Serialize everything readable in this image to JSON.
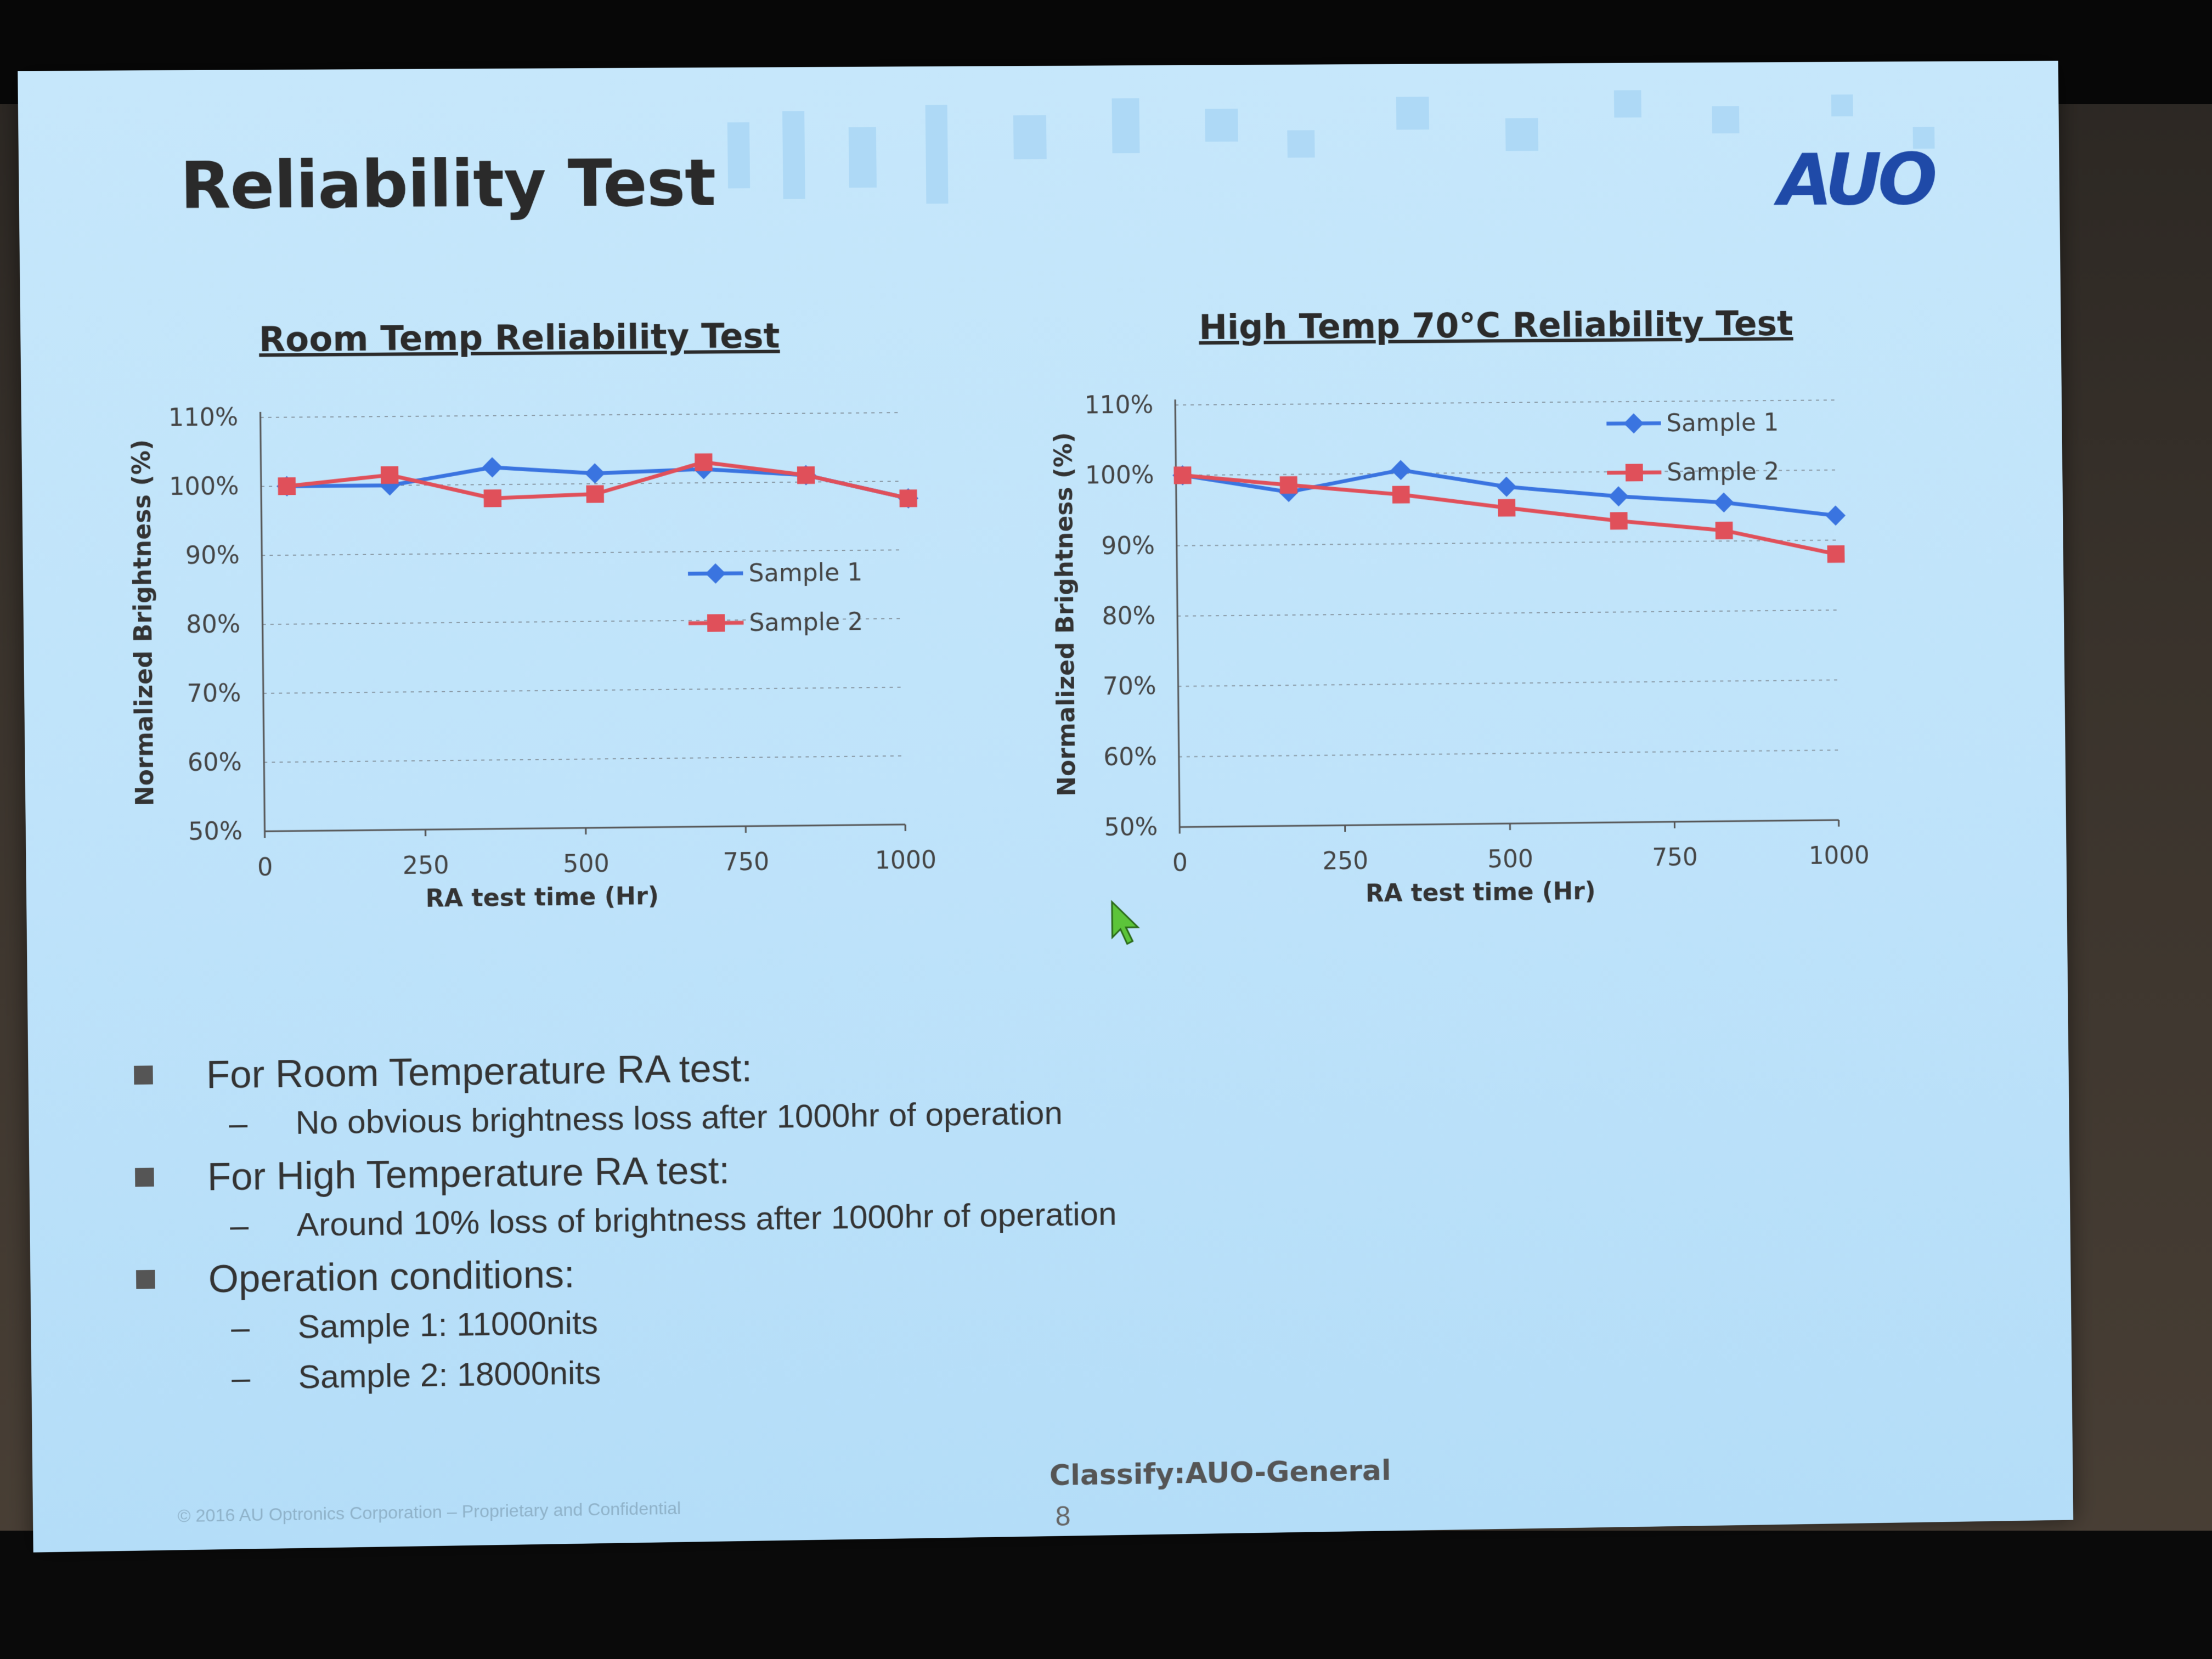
{
  "slide": {
    "title": "Reliability Test",
    "logo": "AUO",
    "classify": "Classify:AUO-General",
    "page_number": "8",
    "copyright": "© 2016 AU Optronics Corporation – Proprietary and Confidential"
  },
  "colors": {
    "sample1": "#3a74e0",
    "sample2": "#e0505a"
  },
  "chart_data": [
    {
      "type": "line",
      "title": "Room Temp Reliability Test",
      "xlabel": "RA test time (Hr)",
      "ylabel": "Normalized Brightness (%)",
      "x_ticks": [
        "0",
        "250",
        "500",
        "750",
        "1000"
      ],
      "y_ticks": [
        "50%",
        "60%",
        "70%",
        "80%",
        "90%",
        "100%",
        "110%"
      ],
      "xlim": [
        0,
        1000
      ],
      "ylim": [
        50,
        110
      ],
      "grid": true,
      "legend": "middle-right",
      "series": [
        {
          "name": "Sample 1",
          "x": [
            40,
            200,
            360,
            520,
            690,
            850,
            1010
          ],
          "values": [
            100,
            100,
            102.5,
            101.5,
            102,
            101,
            97.5
          ]
        },
        {
          "name": "Sample 2",
          "x": [
            40,
            200,
            360,
            520,
            690,
            850,
            1010
          ],
          "values": [
            100,
            101.5,
            98,
            98.5,
            103,
            101,
            97.5
          ]
        }
      ]
    },
    {
      "type": "line",
      "title": "High Temp 70°C Reliability Test",
      "xlabel": "RA test time (Hr)",
      "ylabel": "Normalized Brightness (%)",
      "x_ticks": [
        "0",
        "250",
        "500",
        "750",
        "1000"
      ],
      "y_ticks": [
        "50%",
        "60%",
        "70%",
        "80%",
        "90%",
        "100%",
        "110%"
      ],
      "xlim": [
        0,
        1000
      ],
      "ylim": [
        50,
        110
      ],
      "grid": true,
      "legend": "top-right",
      "series": [
        {
          "name": "Sample 1",
          "x": [
            10,
            170,
            340,
            500,
            670,
            830,
            1000
          ],
          "values": [
            100,
            97.5,
            100.5,
            98,
            96.5,
            95.5,
            93.5
          ]
        },
        {
          "name": "Sample 2",
          "x": [
            10,
            170,
            340,
            500,
            670,
            830,
            1000
          ],
          "values": [
            100,
            98.5,
            97,
            95,
            93,
            91.5,
            88
          ]
        }
      ]
    }
  ],
  "bullets": [
    {
      "text": "For Room Temperature RA test:",
      "subs": [
        "No obvious brightness loss after 1000hr of operation"
      ]
    },
    {
      "text": "For High Temperature RA test:",
      "subs": [
        "Around 10% loss of brightness after 1000hr of operation"
      ]
    },
    {
      "text": "Operation conditions:",
      "subs": [
        "Sample 1: 11000nits",
        "Sample 2: 18000nits"
      ]
    }
  ]
}
